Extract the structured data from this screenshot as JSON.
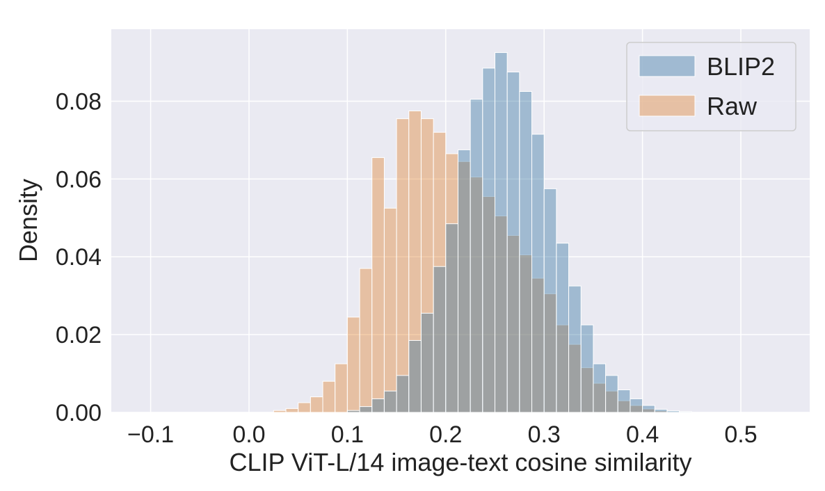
{
  "chart_data": {
    "type": "bar",
    "subtype": "overlaid-histogram",
    "title": "",
    "xlabel": "CLIP ViT-L/14 image-text cosine similarity",
    "ylabel": "Density",
    "xlim": [
      -0.14,
      0.57
    ],
    "ylim": [
      0,
      0.0985
    ],
    "x_ticks": [
      -0.1,
      0.0,
      0.1,
      0.2,
      0.3,
      0.4,
      0.5
    ],
    "x_tick_labels": [
      "−0.1",
      "0.0",
      "0.1",
      "0.2",
      "0.3",
      "0.4",
      "0.5"
    ],
    "y_ticks": [
      0.0,
      0.02,
      0.04,
      0.06,
      0.08
    ],
    "y_tick_labels": [
      "0.00",
      "0.02",
      "0.04",
      "0.06",
      "0.08"
    ],
    "grid": true,
    "legend_position": "top-right",
    "bin_width": 0.0125,
    "series": [
      {
        "name": "Raw",
        "color": "#e1812c",
        "opacity": 0.4,
        "bins_start": [
          0.025,
          0.0375,
          0.05,
          0.0625,
          0.075,
          0.0875,
          0.1,
          0.1125,
          0.125,
          0.1375,
          0.15,
          0.1625,
          0.175,
          0.1875,
          0.2,
          0.2125,
          0.225,
          0.2375,
          0.25,
          0.2625,
          0.275,
          0.2875,
          0.3,
          0.3125,
          0.325,
          0.3375,
          0.35,
          0.3625,
          0.375,
          0.3875,
          0.4,
          0.4125,
          0.425
        ],
        "values": [
          0.0005,
          0.001,
          0.0025,
          0.004,
          0.008,
          0.0125,
          0.0245,
          0.037,
          0.0655,
          0.0525,
          0.0755,
          0.0775,
          0.0755,
          0.072,
          0.0665,
          0.0645,
          0.0605,
          0.0555,
          0.0505,
          0.0455,
          0.0405,
          0.0345,
          0.0305,
          0.0225,
          0.0175,
          0.0115,
          0.0075,
          0.0055,
          0.003,
          0.0018,
          0.0009,
          0.0004,
          0.0002
        ]
      },
      {
        "name": "BLIP2",
        "color": "#3274a1",
        "opacity": 0.4,
        "bins_start": [
          0.1,
          0.1125,
          0.125,
          0.1375,
          0.15,
          0.1625,
          0.175,
          0.1875,
          0.2,
          0.2125,
          0.225,
          0.2375,
          0.25,
          0.2625,
          0.275,
          0.2875,
          0.3,
          0.3125,
          0.325,
          0.3375,
          0.35,
          0.3625,
          0.375,
          0.3875,
          0.4,
          0.4125,
          0.425,
          0.4375
        ],
        "values": [
          0.0005,
          0.0015,
          0.0035,
          0.0055,
          0.0095,
          0.0185,
          0.0255,
          0.0375,
          0.0485,
          0.0675,
          0.0805,
          0.0885,
          0.0925,
          0.0875,
          0.0825,
          0.0715,
          0.0575,
          0.0435,
          0.0325,
          0.0225,
          0.0125,
          0.0095,
          0.0058,
          0.0035,
          0.0018,
          0.0008,
          0.0004,
          0.0002
        ]
      }
    ]
  }
}
